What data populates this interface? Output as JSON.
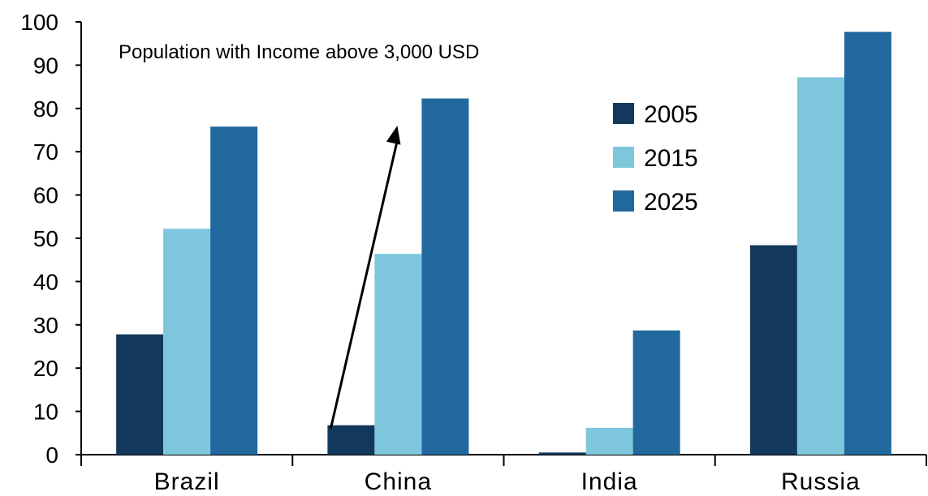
{
  "chart_data": {
    "type": "bar",
    "title": "Population with Income above 3,000 USD",
    "categories": [
      "Brazil",
      "China",
      "India",
      "Russia"
    ],
    "series": [
      {
        "name": "2005",
        "color": "#12395c",
        "values": [
          27.8,
          6.8,
          0.5,
          48.4
        ]
      },
      {
        "name": "2015",
        "color": "#7ec6dc",
        "values": [
          52.2,
          46.4,
          6.2,
          87.2
        ]
      },
      {
        "name": "2025",
        "color": "#20689e",
        "values": [
          75.8,
          82.3,
          28.7,
          97.7
        ]
      }
    ],
    "ylim": [
      0,
      100
    ],
    "yticks": [
      "0",
      "10",
      "20",
      "30",
      "40",
      "50",
      "60",
      "70",
      "80",
      "90",
      "100"
    ],
    "xlabel": "",
    "ylabel": "",
    "grid": false,
    "legend_position": "top-right",
    "annotation": {
      "type": "arrow",
      "from_category": "China",
      "from_value": 6.8,
      "to_value": 76
    }
  }
}
